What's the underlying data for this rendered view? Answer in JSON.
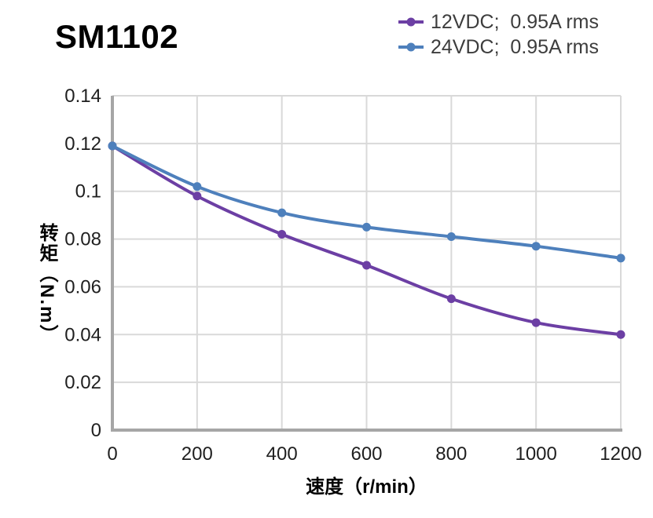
{
  "chart_data": {
    "type": "line",
    "title": "SM1102",
    "x": [
      0,
      200,
      400,
      600,
      800,
      1000,
      1200
    ],
    "series": [
      {
        "name": "12VDC;  0.95A rms",
        "color": "#6C3FA4",
        "values": [
          0.119,
          0.098,
          0.082,
          0.069,
          0.055,
          0.045,
          0.04
        ]
      },
      {
        "name": "24VDC;  0.95A rms",
        "color": "#4E80BC",
        "values": [
          0.119,
          0.102,
          0.091,
          0.085,
          0.081,
          0.077,
          0.072
        ]
      }
    ],
    "xlabel": "速度（r/min）",
    "ylabel": "转矩（N.m）",
    "xlim": [
      0,
      1200
    ],
    "ylim": [
      0,
      0.14
    ],
    "x_ticks": [
      0,
      200,
      400,
      600,
      800,
      1000,
      1200
    ],
    "y_ticks": [
      0,
      0.02,
      0.04,
      0.06,
      0.08,
      0.1,
      0.12,
      0.14
    ],
    "grid": true,
    "legend_position": "top-right",
    "marker": "circle",
    "line_style": "smooth",
    "colors": {
      "grid": "#D9D9D9",
      "axis": "#A6A6A6",
      "tick_text": "#1F1F1F",
      "title_text": "#000000",
      "legend_text": "#3D3D3D",
      "background": "#FFFFFF"
    }
  }
}
